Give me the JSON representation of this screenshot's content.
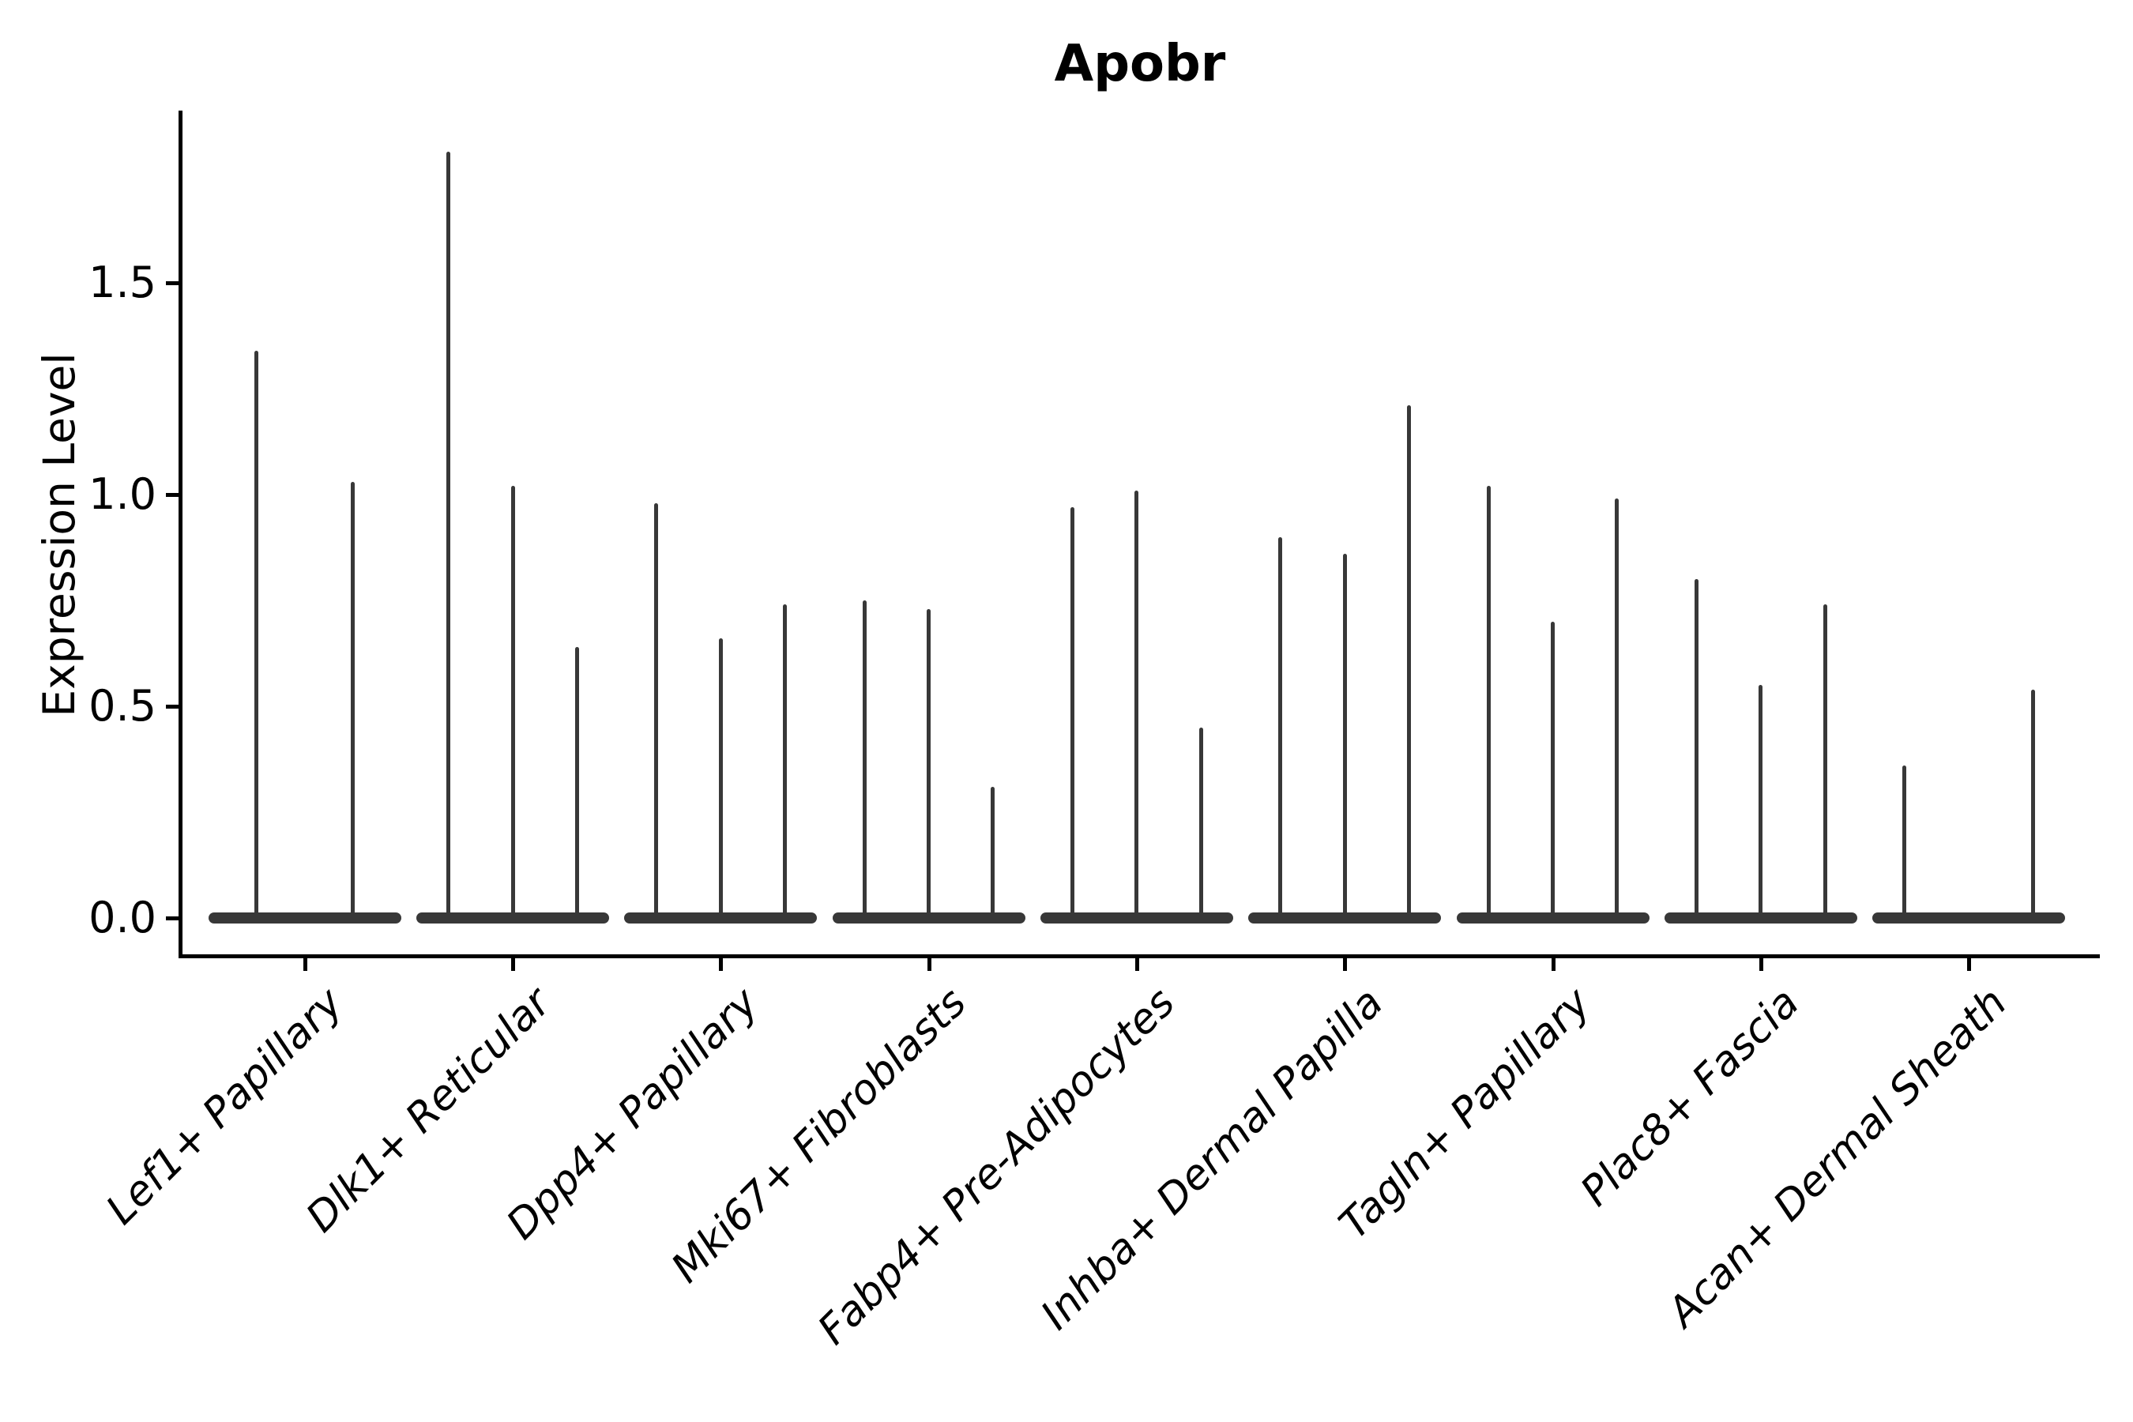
{
  "figure": {
    "background": "#ffffff",
    "axis_color": "#000000",
    "violin_color": "#383838"
  },
  "chart_data": {
    "type": "violin",
    "style": "stick-violin (near-zero-width violins, flat base at 0)",
    "title": "Apobr",
    "xlabel": "",
    "ylabel": "Expression Level",
    "ytick_labels": [
      "0.0",
      "0.5",
      "1.0",
      "1.5"
    ],
    "ytick_values": [
      0.0,
      0.5,
      1.0,
      1.5
    ],
    "ylim": [
      -0.09,
      1.9
    ],
    "grid": false,
    "legend": "none",
    "categories": [
      "Lef1+ Papillary",
      "Dlk1+ Reticular",
      "Dpp4+ Papillary",
      "Mki67+ Fibroblasts",
      "Fabp4+ Pre-Adipocytes",
      "Inhba+ Dermal Papilla",
      "Tagln+ Papillary",
      "Plac8+ Fascia",
      "Acan+ Dermal Sheath"
    ],
    "groups": [
      {
        "label": "Lef1+ Papillary",
        "violin_peaks": [
          1.34,
          1.03
        ]
      },
      {
        "label": "Dlk1+ Reticular",
        "violin_peaks": [
          1.81,
          1.02,
          0.64
        ]
      },
      {
        "label": "Dpp4+ Papillary",
        "violin_peaks": [
          0.98,
          0.66,
          0.74
        ]
      },
      {
        "label": "Mki67+ Fibroblasts",
        "violin_peaks": [
          0.75,
          0.73,
          0.31
        ]
      },
      {
        "label": "Fabp4+ Pre-Adipocytes",
        "violin_peaks": [
          0.97,
          1.01,
          0.45
        ]
      },
      {
        "label": "Inhba+ Dermal Papilla",
        "violin_peaks": [
          0.9,
          0.86,
          1.21
        ]
      },
      {
        "label": "Tagln+ Papillary",
        "violin_peaks": [
          1.02,
          0.7,
          0.99
        ]
      },
      {
        "label": "Plac8+ Fascia",
        "violin_peaks": [
          0.8,
          0.55,
          0.74
        ]
      },
      {
        "label": "Acan+ Dermal Sheath",
        "violin_peaks": [
          0.36,
          0,
          0.54
        ]
      }
    ]
  }
}
